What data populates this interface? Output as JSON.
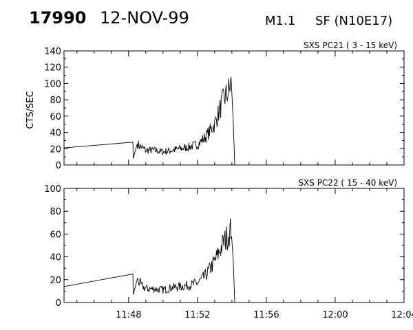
{
  "header": {
    "event_id": "17990",
    "date": "12-NOV-99",
    "goes_class": "M1.1",
    "flare": "SF (N10E17)"
  },
  "ylabel": "CTS/SEC",
  "x_ticks": [
    "11:48",
    "11:52",
    "11:56",
    "12:00",
    "12:04"
  ],
  "chart_data": [
    {
      "type": "line",
      "title": "SXS PC21  (  3 - 15 keV)",
      "ylabel": "CTS/SEC",
      "xlim": [
        "11:44:15",
        "12:04:00"
      ],
      "ylim": [
        0,
        140
      ],
      "y_ticks": [
        0,
        20,
        40,
        60,
        80,
        100,
        120,
        140
      ],
      "x_ticks": [
        "11:48",
        "11:52",
        "11:56",
        "12:00",
        "12:04"
      ],
      "series": [
        {
          "x": [
            "11:44:15",
            "11:48:15",
            "11:48:16",
            "11:48:30",
            "11:48:45",
            "11:49:00",
            "11:49:30",
            "11:50:00",
            "11:50:30",
            "11:51:00",
            "11:51:30",
            "11:52:00",
            "11:52:30",
            "11:53:00",
            "11:53:15",
            "11:53:30",
            "11:53:45",
            "11:54:00",
            "11:54:05",
            "11:54:10"
          ],
          "y": [
            21,
            28,
            8,
            26,
            22,
            18,
            18,
            16,
            18,
            20,
            22,
            25,
            35,
            50,
            65,
            80,
            88,
            102,
            50,
            0
          ]
        }
      ]
    },
    {
      "type": "line",
      "title": "SXS PC22  ( 15 - 40 keV)",
      "ylabel": "",
      "xlim": [
        "11:44:15",
        "12:04:00"
      ],
      "ylim": [
        0,
        100
      ],
      "y_ticks": [
        0,
        20,
        40,
        60,
        80,
        100
      ],
      "x_ticks": [
        "11:48",
        "11:52",
        "11:56",
        "12:00",
        "12:04"
      ],
      "series": [
        {
          "x": [
            "11:44:15",
            "11:48:15",
            "11:48:16",
            "11:48:30",
            "11:48:45",
            "11:49:00",
            "11:49:30",
            "11:50:00",
            "11:50:30",
            "11:51:00",
            "11:51:30",
            "11:52:00",
            "11:52:30",
            "11:53:00",
            "11:53:15",
            "11:53:30",
            "11:53:45",
            "11:54:00",
            "11:54:05",
            "11:54:10"
          ],
          "y": [
            14,
            25,
            7,
            20,
            15,
            12,
            12,
            11,
            13,
            14,
            15,
            17,
            24,
            36,
            44,
            52,
            58,
            66,
            35,
            0
          ]
        }
      ]
    }
  ]
}
